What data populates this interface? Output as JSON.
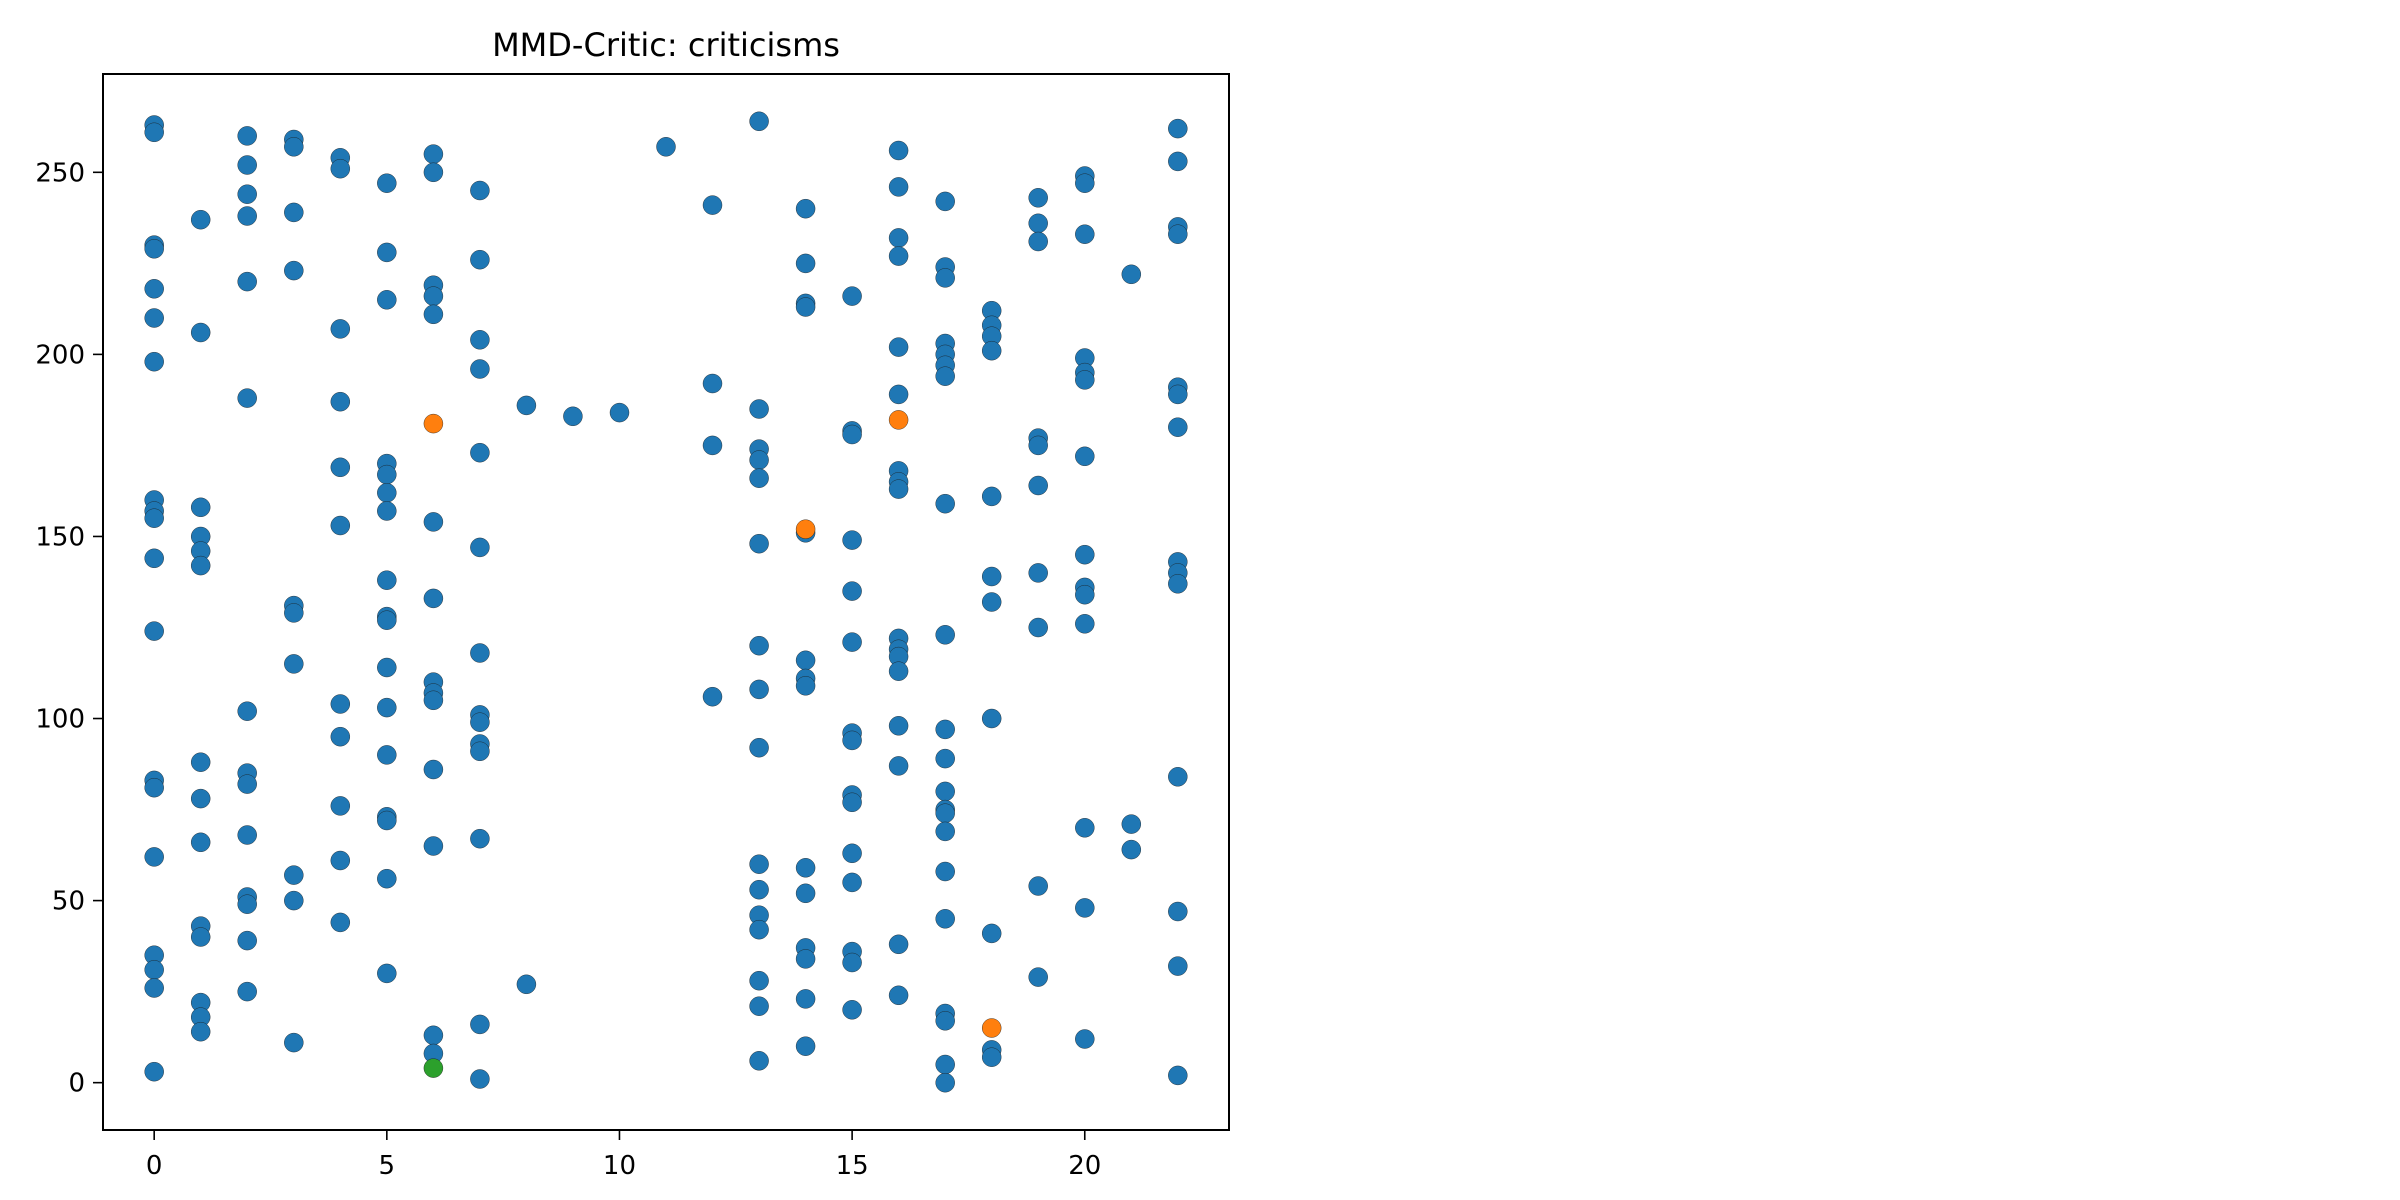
{
  "chart_data": {
    "type": "scatter",
    "title": "MMD-Critic: criticisms",
    "xlabel": "",
    "ylabel": "",
    "xlim": [
      -1.1,
      23.1
    ],
    "ylim": [
      -13,
      277
    ],
    "xticks": [
      0,
      5,
      10,
      15,
      20
    ],
    "yticks": [
      0,
      50,
      100,
      150,
      200,
      250
    ],
    "grid": false,
    "legend": "none",
    "colors": {
      "data": "#1f77b4",
      "prototypes": "#ff7f0e",
      "criticisms": "#2ca02c"
    },
    "series": [
      {
        "color": "#1f77b4",
        "points": [
          [
            0,
            263
          ],
          [
            0,
            261
          ],
          [
            0,
            230
          ],
          [
            0,
            229
          ],
          [
            0,
            218
          ],
          [
            0,
            210
          ],
          [
            0,
            198
          ],
          [
            0,
            160
          ],
          [
            0,
            157
          ],
          [
            0,
            155
          ],
          [
            0,
            144
          ],
          [
            0,
            124
          ],
          [
            0,
            83
          ],
          [
            0,
            81
          ],
          [
            0,
            62
          ],
          [
            0,
            35
          ],
          [
            0,
            31
          ],
          [
            0,
            26
          ],
          [
            0,
            3
          ],
          [
            1,
            237
          ],
          [
            1,
            206
          ],
          [
            1,
            158
          ],
          [
            1,
            150
          ],
          [
            1,
            146
          ],
          [
            1,
            142
          ],
          [
            1,
            88
          ],
          [
            1,
            78
          ],
          [
            1,
            66
          ],
          [
            1,
            43
          ],
          [
            1,
            40
          ],
          [
            1,
            22
          ],
          [
            1,
            18
          ],
          [
            1,
            14
          ],
          [
            2,
            260
          ],
          [
            2,
            252
          ],
          [
            2,
            244
          ],
          [
            2,
            238
          ],
          [
            2,
            220
          ],
          [
            2,
            188
          ],
          [
            2,
            102
          ],
          [
            2,
            85
          ],
          [
            2,
            82
          ],
          [
            2,
            68
          ],
          [
            2,
            51
          ],
          [
            2,
            49
          ],
          [
            2,
            39
          ],
          [
            2,
            25
          ],
          [
            3,
            259
          ],
          [
            3,
            257
          ],
          [
            3,
            239
          ],
          [
            3,
            223
          ],
          [
            3,
            131
          ],
          [
            3,
            129
          ],
          [
            3,
            115
          ],
          [
            3,
            57
          ],
          [
            3,
            50
          ],
          [
            3,
            11
          ],
          [
            4,
            254
          ],
          [
            4,
            251
          ],
          [
            4,
            207
          ],
          [
            4,
            187
          ],
          [
            4,
            169
          ],
          [
            4,
            153
          ],
          [
            4,
            104
          ],
          [
            4,
            95
          ],
          [
            4,
            76
          ],
          [
            4,
            61
          ],
          [
            4,
            44
          ],
          [
            5,
            247
          ],
          [
            5,
            228
          ],
          [
            5,
            215
          ],
          [
            5,
            170
          ],
          [
            5,
            167
          ],
          [
            5,
            162
          ],
          [
            5,
            157
          ],
          [
            5,
            138
          ],
          [
            5,
            128
          ],
          [
            5,
            127
          ],
          [
            5,
            114
          ],
          [
            5,
            103
          ],
          [
            5,
            90
          ],
          [
            5,
            73
          ],
          [
            5,
            72
          ],
          [
            5,
            56
          ],
          [
            5,
            30
          ],
          [
            6,
            255
          ],
          [
            6,
            250
          ],
          [
            6,
            219
          ],
          [
            6,
            216
          ],
          [
            6,
            211
          ],
          [
            6,
            154
          ],
          [
            6,
            133
          ],
          [
            6,
            110
          ],
          [
            6,
            107
          ],
          [
            6,
            105
          ],
          [
            6,
            86
          ],
          [
            6,
            65
          ],
          [
            6,
            13
          ],
          [
            6,
            8
          ],
          [
            7,
            245
          ],
          [
            7,
            226
          ],
          [
            7,
            204
          ],
          [
            7,
            196
          ],
          [
            7,
            173
          ],
          [
            7,
            147
          ],
          [
            7,
            118
          ],
          [
            7,
            101
          ],
          [
            7,
            99
          ],
          [
            7,
            93
          ],
          [
            7,
            91
          ],
          [
            7,
            67
          ],
          [
            7,
            16
          ],
          [
            7,
            1
          ],
          [
            8,
            186
          ],
          [
            8,
            27
          ],
          [
            9,
            183
          ],
          [
            10,
            184
          ],
          [
            11,
            257
          ],
          [
            12,
            241
          ],
          [
            12,
            192
          ],
          [
            12,
            175
          ],
          [
            12,
            106
          ],
          [
            13,
            264
          ],
          [
            13,
            185
          ],
          [
            13,
            174
          ],
          [
            13,
            171
          ],
          [
            13,
            166
          ],
          [
            13,
            148
          ],
          [
            13,
            120
          ],
          [
            13,
            108
          ],
          [
            13,
            92
          ],
          [
            13,
            60
          ],
          [
            13,
            53
          ],
          [
            13,
            46
          ],
          [
            13,
            42
          ],
          [
            13,
            28
          ],
          [
            13,
            21
          ],
          [
            13,
            6
          ],
          [
            14,
            240
          ],
          [
            14,
            225
          ],
          [
            14,
            214
          ],
          [
            14,
            213
          ],
          [
            14,
            151
          ],
          [
            14,
            116
          ],
          [
            14,
            111
          ],
          [
            14,
            109
          ],
          [
            14,
            59
          ],
          [
            14,
            52
          ],
          [
            14,
            37
          ],
          [
            14,
            34
          ],
          [
            14,
            23
          ],
          [
            14,
            10
          ],
          [
            15,
            216
          ],
          [
            15,
            179
          ],
          [
            15,
            178
          ],
          [
            15,
            149
          ],
          [
            15,
            135
          ],
          [
            15,
            121
          ],
          [
            15,
            96
          ],
          [
            15,
            94
          ],
          [
            15,
            79
          ],
          [
            15,
            77
          ],
          [
            15,
            63
          ],
          [
            15,
            55
          ],
          [
            15,
            36
          ],
          [
            15,
            33
          ],
          [
            15,
            20
          ],
          [
            16,
            256
          ],
          [
            16,
            246
          ],
          [
            16,
            232
          ],
          [
            16,
            227
          ],
          [
            16,
            202
          ],
          [
            16,
            189
          ],
          [
            16,
            168
          ],
          [
            16,
            165
          ],
          [
            16,
            163
          ],
          [
            16,
            122
          ],
          [
            16,
            119
          ],
          [
            16,
            117
          ],
          [
            16,
            113
          ],
          [
            16,
            98
          ],
          [
            16,
            87
          ],
          [
            16,
            38
          ],
          [
            16,
            24
          ],
          [
            17,
            242
          ],
          [
            17,
            224
          ],
          [
            17,
            221
          ],
          [
            17,
            203
          ],
          [
            17,
            200
          ],
          [
            17,
            197
          ],
          [
            17,
            194
          ],
          [
            17,
            159
          ],
          [
            17,
            123
          ],
          [
            17,
            97
          ],
          [
            17,
            89
          ],
          [
            17,
            80
          ],
          [
            17,
            75
          ],
          [
            17,
            74
          ],
          [
            17,
            69
          ],
          [
            17,
            58
          ],
          [
            17,
            45
          ],
          [
            17,
            19
          ],
          [
            17,
            17
          ],
          [
            17,
            5
          ],
          [
            17,
            0
          ],
          [
            18,
            212
          ],
          [
            18,
            208
          ],
          [
            18,
            205
          ],
          [
            18,
            201
          ],
          [
            18,
            161
          ],
          [
            18,
            139
          ],
          [
            18,
            132
          ],
          [
            18,
            100
          ],
          [
            18,
            41
          ],
          [
            18,
            9
          ],
          [
            18,
            7
          ],
          [
            19,
            243
          ],
          [
            19,
            236
          ],
          [
            19,
            231
          ],
          [
            19,
            177
          ],
          [
            19,
            175
          ],
          [
            19,
            164
          ],
          [
            19,
            140
          ],
          [
            19,
            125
          ],
          [
            19,
            54
          ],
          [
            19,
            29
          ],
          [
            20,
            249
          ],
          [
            20,
            247
          ],
          [
            20,
            233
          ],
          [
            20,
            199
          ],
          [
            20,
            195
          ],
          [
            20,
            193
          ],
          [
            20,
            172
          ],
          [
            20,
            145
          ],
          [
            20,
            136
          ],
          [
            20,
            134
          ],
          [
            20,
            126
          ],
          [
            20,
            70
          ],
          [
            20,
            48
          ],
          [
            20,
            12
          ],
          [
            21,
            222
          ],
          [
            21,
            71
          ],
          [
            21,
            64
          ],
          [
            22,
            262
          ],
          [
            22,
            253
          ],
          [
            22,
            235
          ],
          [
            22,
            233
          ],
          [
            22,
            191
          ],
          [
            22,
            189
          ],
          [
            22,
            180
          ],
          [
            22,
            143
          ],
          [
            22,
            140
          ],
          [
            22,
            137
          ],
          [
            22,
            84
          ],
          [
            22,
            47
          ],
          [
            22,
            32
          ],
          [
            22,
            2
          ]
        ]
      },
      {
        "color": "#ff7f0e",
        "points": [
          [
            6,
            181
          ],
          [
            14,
            152
          ],
          [
            16,
            182
          ],
          [
            18,
            15
          ]
        ]
      },
      {
        "color": "#2ca02c",
        "points": [
          [
            6,
            4
          ]
        ]
      }
    ]
  }
}
